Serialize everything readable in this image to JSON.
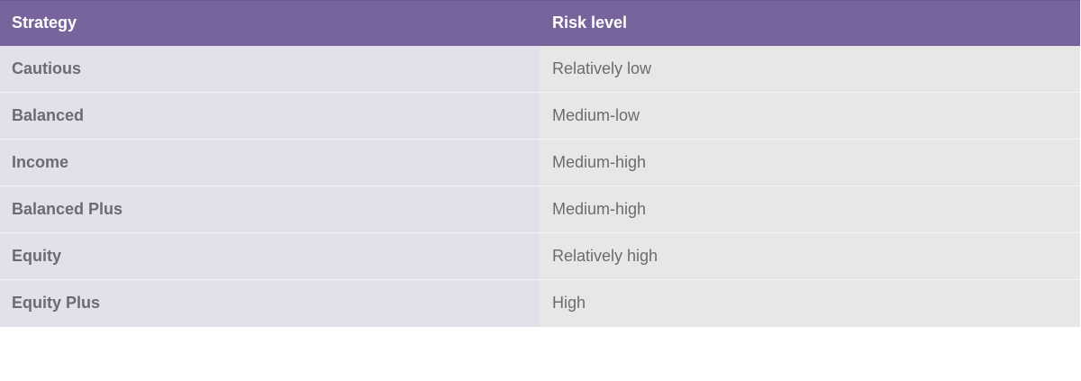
{
  "table": {
    "headers": [
      "Strategy",
      "Risk level"
    ],
    "rows": [
      {
        "strategy": "Cautious",
        "risk": "Relatively low"
      },
      {
        "strategy": "Balanced",
        "risk": "Medium-low"
      },
      {
        "strategy": "Income",
        "risk": "Medium-high"
      },
      {
        "strategy": "Balanced Plus",
        "risk": "Medium-high"
      },
      {
        "strategy": "Equity",
        "risk": "Relatively high"
      },
      {
        "strategy": "Equity Plus",
        "risk": "High"
      }
    ]
  },
  "colors": {
    "header_bg": "#77649c",
    "strategy_col_bg": "#e3e0ea",
    "risk_col_bg": "#e7e8e6",
    "text": "#6b6b72"
  }
}
